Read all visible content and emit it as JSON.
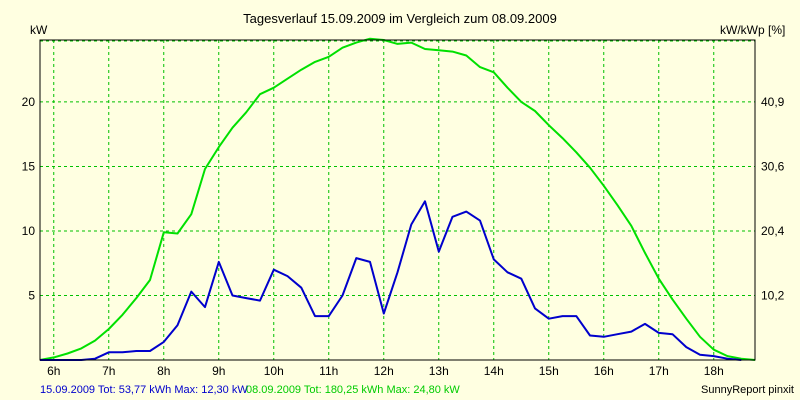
{
  "chart_data": {
    "type": "line",
    "title": "Tagesverlauf 15.09.2009 im Vergleich zum 08.09.2009",
    "ylabel_left": "kW",
    "ylabel_right": "kW/kWp [%]",
    "x_ticks": [
      "6h",
      "7h",
      "8h",
      "9h",
      "10h",
      "11h",
      "12h",
      "13h",
      "14h",
      "15h",
      "16h",
      "17h",
      "18h"
    ],
    "xlim": [
      5.75,
      18.75
    ],
    "ylim": [
      0,
      24.8
    ],
    "y_ticks_left": [
      "5",
      "10",
      "15",
      "20"
    ],
    "y_ticks_right": [
      "10,2",
      "20,4",
      "30,6",
      "40,9"
    ],
    "grid": true,
    "colors": {
      "series1": "#0000cc",
      "series2": "#00e000",
      "grid": "#00c000",
      "background": "#ffffe1"
    },
    "series": [
      {
        "name": "15.09.2009",
        "x": [
          5.75,
          6.5,
          6.75,
          7.0,
          7.25,
          7.5,
          7.75,
          8.0,
          8.25,
          8.5,
          8.75,
          9.0,
          9.25,
          9.5,
          9.75,
          10.0,
          10.25,
          10.5,
          10.75,
          11.0,
          11.25,
          11.5,
          11.75,
          12.0,
          12.25,
          12.5,
          12.75,
          13.0,
          13.25,
          13.5,
          13.75,
          14.0,
          14.25,
          14.5,
          14.75,
          15.0,
          15.25,
          15.5,
          15.75,
          16.0,
          16.25,
          16.5,
          16.75,
          17.0,
          17.25,
          17.5,
          17.75,
          18.0,
          18.25,
          18.5
        ],
        "y": [
          0,
          0,
          0.1,
          0.6,
          0.6,
          0.7,
          0.7,
          1.4,
          2.7,
          5.3,
          4.1,
          7.6,
          5.0,
          4.8,
          4.6,
          7.0,
          6.5,
          5.6,
          3.4,
          3.4,
          5.0,
          7.9,
          7.6,
          3.6,
          6.8,
          10.5,
          12.3,
          8.4,
          11.1,
          11.5,
          10.8,
          7.8,
          6.8,
          6.3,
          4.0,
          3.2,
          3.4,
          3.4,
          1.9,
          1.8,
          2.0,
          2.2,
          2.8,
          2.1,
          2.0,
          1.0,
          0.4,
          0.3,
          0.1,
          0
        ]
      },
      {
        "name": "08.09.2009",
        "x": [
          5.75,
          6.0,
          6.25,
          6.5,
          6.75,
          7.0,
          7.25,
          7.5,
          7.75,
          8.0,
          8.25,
          8.5,
          8.75,
          9.0,
          9.25,
          9.5,
          9.75,
          10.0,
          10.25,
          10.5,
          10.75,
          11.0,
          11.25,
          11.5,
          11.75,
          12.0,
          12.25,
          12.5,
          12.75,
          13.0,
          13.25,
          13.5,
          13.75,
          14.0,
          14.25,
          14.5,
          14.75,
          15.0,
          15.25,
          15.5,
          15.75,
          16.0,
          16.25,
          16.5,
          16.75,
          17.0,
          17.25,
          17.5,
          17.75,
          18.0,
          18.25,
          18.5,
          18.75
        ],
        "y": [
          0,
          0.2,
          0.5,
          0.9,
          1.5,
          2.4,
          3.5,
          4.8,
          6.2,
          9.9,
          9.8,
          11.3,
          14.8,
          16.5,
          18.0,
          19.2,
          20.6,
          21.1,
          21.8,
          22.5,
          23.1,
          23.5,
          24.2,
          24.6,
          24.9,
          24.8,
          24.5,
          24.6,
          24.1,
          24.0,
          23.9,
          23.6,
          22.7,
          22.3,
          21.1,
          20.0,
          19.3,
          18.2,
          17.2,
          16.1,
          14.9,
          13.5,
          12.0,
          10.4,
          8.3,
          6.3,
          4.7,
          3.2,
          1.8,
          0.8,
          0.3,
          0.1,
          0
        ]
      }
    ]
  },
  "footer": {
    "legend1": "15.09.2009 Tot: 53,77 kWh Max: 12,30 kW",
    "legend2": "08.09.2009 Tot: 180,25 kWh Max: 24,80 kW",
    "brand": "SunnyReport pinxit"
  }
}
